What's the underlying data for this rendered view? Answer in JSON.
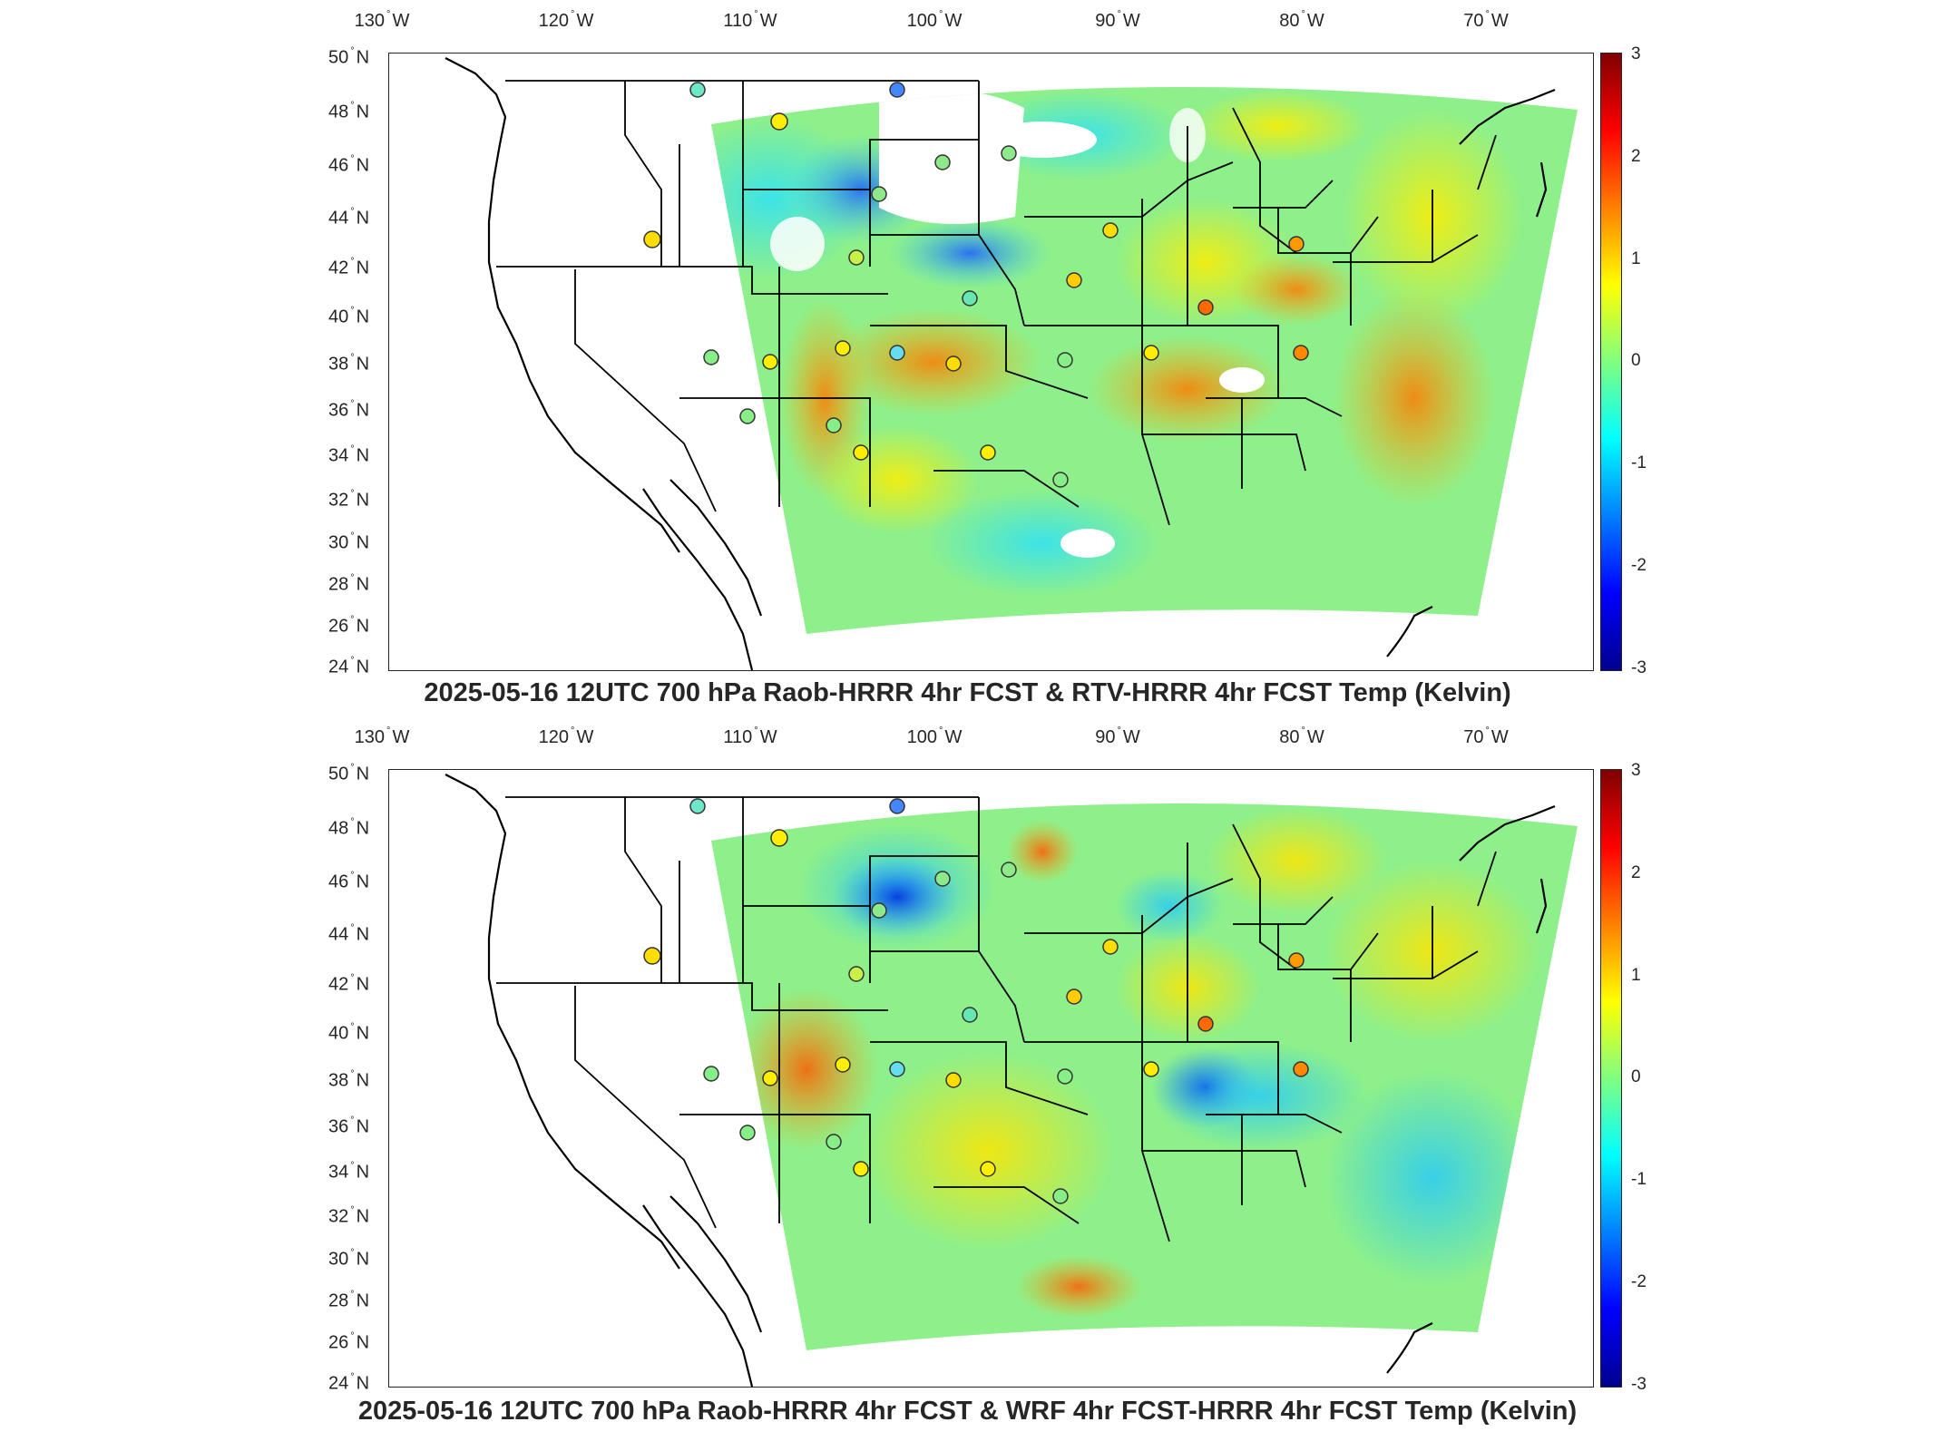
{
  "figure": {
    "panels": [
      {
        "title": "2025-05-16 12UTC 700 hPa Raob-HRRR 4hr FCST & RTV-HRRR 4hr FCST Temp (Kelvin)"
      },
      {
        "title": "2025-05-16 12UTC 700 hPa Raob-HRRR 4hr FCST & WRF 4hr FCST-HRRR 4hr FCST Temp (Kelvin)"
      }
    ],
    "longitude_labels": [
      "130",
      "120",
      "110",
      "100",
      "90",
      "80",
      "70"
    ],
    "longitude_suffix": "W",
    "latitude_labels": [
      "50",
      "48",
      "46",
      "44",
      "42",
      "40",
      "38",
      "36",
      "34",
      "32",
      "30",
      "28",
      "26",
      "24"
    ],
    "latitude_suffix": "N",
    "degree_symbol": "°",
    "colorbar": {
      "ticks": [
        "3",
        "2",
        "1",
        "0",
        "-1",
        "-2",
        "-3"
      ],
      "range": [
        -3,
        3
      ],
      "colormap": "jet",
      "colors": {
        "min": "#00008f",
        "mid": "#80ff80",
        "max": "#800000"
      }
    },
    "map_colors": {
      "background": "#ffffff",
      "field_base": "#7fe8a0",
      "station_outline": "#333333"
    }
  }
}
